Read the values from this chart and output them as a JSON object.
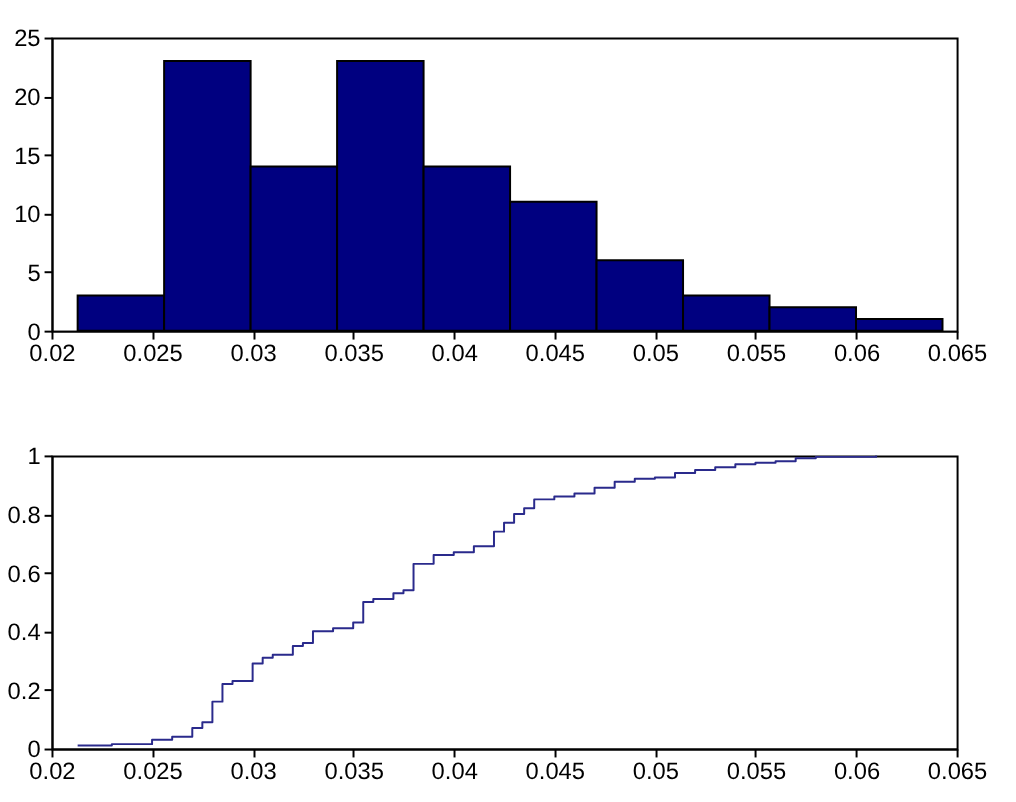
{
  "chart_data": [
    {
      "type": "histogram",
      "bins": [
        0.0213,
        0.0256,
        0.0299,
        0.0342,
        0.0385,
        0.0428,
        0.0471,
        0.0514,
        0.0557,
        0.06,
        0.0643
      ],
      "values": [
        3,
        23,
        14,
        23,
        14,
        11,
        6,
        3,
        2,
        1
      ],
      "color": "#000080",
      "xlim": [
        0.02,
        0.065
      ],
      "xticks": [
        0.02,
        0.025,
        0.03,
        0.035,
        0.04,
        0.045,
        0.05,
        0.055,
        0.06,
        0.065
      ],
      "ylim": [
        0,
        25
      ],
      "yticks": [
        0,
        5,
        10,
        15,
        20,
        25
      ],
      "grid": false
    },
    {
      "type": "step",
      "series": [
        {
          "color": "#2a2a8c",
          "x": [
            0.0213,
            0.023,
            0.025,
            0.026,
            0.027,
            0.0275,
            0.028,
            0.0285,
            0.029,
            0.03,
            0.0305,
            0.031,
            0.032,
            0.0325,
            0.033,
            0.034,
            0.035,
            0.0355,
            0.036,
            0.037,
            0.0375,
            0.038,
            0.039,
            0.04,
            0.041,
            0.042,
            0.0425,
            0.043,
            0.0435,
            0.044,
            0.045,
            0.046,
            0.047,
            0.048,
            0.049,
            0.05,
            0.051,
            0.052,
            0.053,
            0.054,
            0.055,
            0.056,
            0.057,
            0.058,
            0.061
          ],
          "values": [
            0.01,
            0.015,
            0.03,
            0.04,
            0.07,
            0.09,
            0.16,
            0.22,
            0.23,
            0.29,
            0.31,
            0.32,
            0.35,
            0.36,
            0.4,
            0.41,
            0.43,
            0.5,
            0.51,
            0.53,
            0.54,
            0.63,
            0.66,
            0.67,
            0.69,
            0.74,
            0.77,
            0.8,
            0.82,
            0.85,
            0.86,
            0.87,
            0.89,
            0.91,
            0.92,
            0.925,
            0.94,
            0.95,
            0.96,
            0.97,
            0.975,
            0.98,
            0.99,
            0.995,
            1.0
          ]
        }
      ],
      "xlim": [
        0.02,
        0.065
      ],
      "xticks": [
        0.02,
        0.025,
        0.03,
        0.035,
        0.04,
        0.045,
        0.05,
        0.055,
        0.06,
        0.065
      ],
      "ylim": [
        0,
        1
      ],
      "yticks": [
        0,
        0.2,
        0.4,
        0.6,
        0.8,
        1
      ],
      "grid": false,
      "marker": "none",
      "line_style": "solid"
    }
  ]
}
